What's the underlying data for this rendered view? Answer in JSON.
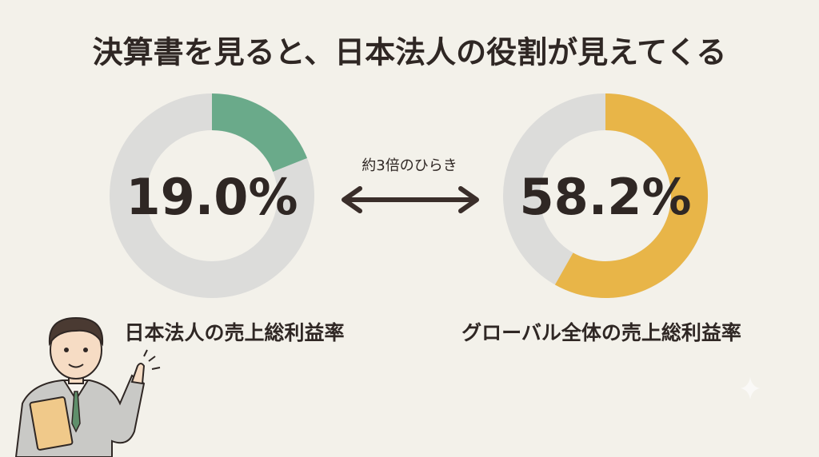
{
  "title": "決算書を見ると、日本法人の役割が見えてくる",
  "annotation": "約3倍のひらき",
  "chart_data": [
    {
      "type": "donut",
      "label": "日本法人の売上総利益率",
      "values": [
        19.0
      ],
      "value_labels": [
        "19.0%"
      ],
      "color": "#6aaa8a",
      "ylim": [
        0,
        100
      ]
    },
    {
      "type": "donut",
      "label": "グローバル全体の売上総利益率",
      "values": [
        58.2
      ],
      "value_labels": [
        "58.2%"
      ],
      "color": "#e8b548",
      "ylim": [
        0,
        100
      ]
    }
  ]
}
